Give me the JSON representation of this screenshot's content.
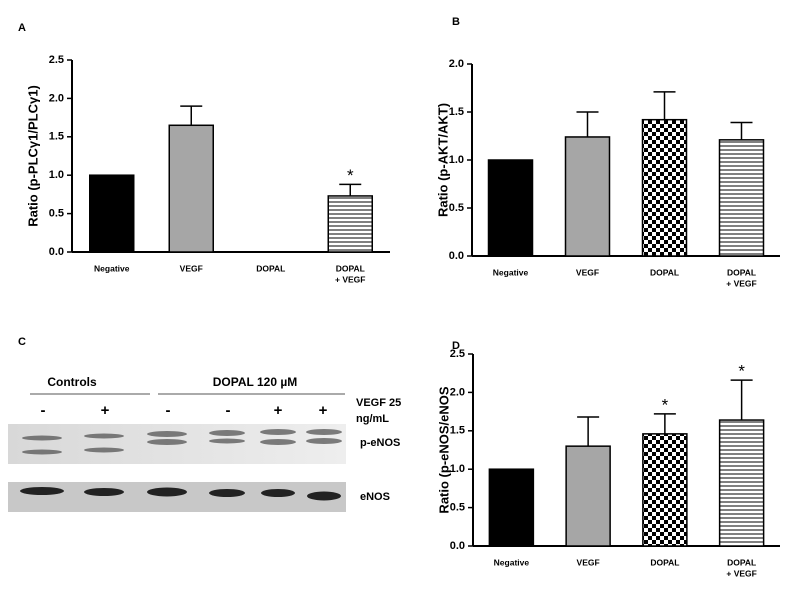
{
  "chart_data": [
    {
      "type": "bar",
      "panel": "A",
      "y_label": "Ratio (p-PLCγ1/PLCγ1)",
      "categories": [
        "Negative",
        "VEGF",
        "DOPAL",
        [
          "DOPAL",
          "+ VEGF"
        ]
      ],
      "values": [
        1.0,
        1.65,
        null,
        0.73
      ],
      "errors": [
        null,
        0.25,
        null,
        0.15
      ],
      "fills": [
        "#000000",
        "#a6a6a6",
        "checker",
        "stripes"
      ],
      "significance": [
        null,
        null,
        null,
        "*"
      ],
      "ylim": [
        0,
        2.5
      ],
      "yticks": [
        {
          "value": 0,
          "label": "0.0"
        },
        {
          "value": 0.5,
          "label": "0.5"
        },
        {
          "value": 1,
          "label": "1.0"
        },
        {
          "value": 1.5,
          "label": "1.5"
        },
        {
          "value": 2,
          "label": "2.0"
        },
        {
          "value": 2.5,
          "label": "2.5"
        }
      ],
      "grid": false
    },
    {
      "type": "bar",
      "panel": "B",
      "y_label": "Ratio (p-AKT/AKT)",
      "categories": [
        "Negative",
        "VEGF",
        "DOPAL",
        [
          "DOPAL",
          "+ VEGF"
        ]
      ],
      "values": [
        1.0,
        1.24,
        1.42,
        1.21
      ],
      "errors": [
        null,
        0.26,
        0.29,
        0.18
      ],
      "fills": [
        "#000000",
        "#a6a6a6",
        "checker",
        "stripes"
      ],
      "significance": [
        null,
        null,
        null,
        null
      ],
      "ylim": [
        0,
        2
      ],
      "yticks": [
        {
          "value": 0,
          "label": "0.0"
        },
        {
          "value": 0.5,
          "label": "0.5"
        },
        {
          "value": 1,
          "label": "1.0"
        },
        {
          "value": 1.5,
          "label": "1.5"
        },
        {
          "value": 2,
          "label": "2.0"
        }
      ],
      "grid": false
    },
    {
      "type": "bar",
      "panel": "D",
      "y_label": "Ratio (p-eNOS/eNOS",
      "categories": [
        "Negative",
        "VEGF",
        "DOPAL",
        [
          "DOPAL",
          "+ VEGF"
        ]
      ],
      "values": [
        1.0,
        1.3,
        1.46,
        1.64
      ],
      "errors": [
        null,
        0.38,
        0.26,
        0.52
      ],
      "fills": [
        "#000000",
        "#a6a6a6",
        "checker",
        "stripes"
      ],
      "significance": [
        null,
        null,
        "*",
        "*"
      ],
      "ylim": [
        0,
        2.5
      ],
      "yticks": [
        {
          "value": 0,
          "label": "0.0"
        },
        {
          "value": 0.5,
          "label": "0.5"
        },
        {
          "value": 1,
          "label": "1.0"
        },
        {
          "value": 1.5,
          "label": "1.5"
        },
        {
          "value": 2,
          "label": "2.0"
        },
        {
          "value": 2.5,
          "label": "2.5"
        }
      ],
      "grid": false
    }
  ],
  "blot": {
    "panel": "C",
    "groups": [
      "Controls",
      "DOPAL 120 µM"
    ],
    "signs": [
      "-",
      "+",
      "-",
      "-",
      "+",
      "+"
    ],
    "treatment": [
      "VEGF 25",
      "ng/mL"
    ],
    "rows": [
      "p-eNOS",
      "eNOS"
    ]
  }
}
